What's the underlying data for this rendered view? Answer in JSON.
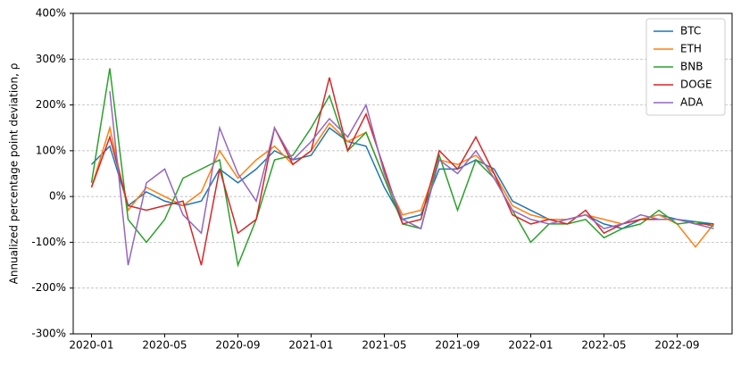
{
  "chart_data": {
    "type": "line",
    "ylabel": "Annualized percentage point deviation, ρ",
    "x": [
      "2020-01",
      "2020-02",
      "2020-03",
      "2020-04",
      "2020-05",
      "2020-06",
      "2020-07",
      "2020-08",
      "2020-09",
      "2020-10",
      "2020-11",
      "2020-12",
      "2021-01",
      "2021-02",
      "2021-03",
      "2021-04",
      "2021-05",
      "2021-06",
      "2021-07",
      "2021-08",
      "2021-09",
      "2021-10",
      "2021-11",
      "2021-12",
      "2022-01",
      "2022-02",
      "2022-03",
      "2022-04",
      "2022-05",
      "2022-06",
      "2022-07",
      "2022-08",
      "2022-09",
      "2022-10",
      "2022-11"
    ],
    "series": [
      {
        "name": "BTC",
        "color": "#1f77b4",
        "values": [
          70,
          110,
          -20,
          10,
          -10,
          -20,
          -10,
          60,
          30,
          60,
          100,
          80,
          90,
          150,
          120,
          110,
          20,
          -50,
          -40,
          60,
          60,
          80,
          60,
          -10,
          -30,
          -50,
          -50,
          -40,
          -60,
          -70,
          -50,
          -40,
          -50,
          -55,
          -60
        ]
      },
      {
        "name": "ETH",
        "color": "#ff7f0e",
        "values": [
          20,
          150,
          -30,
          20,
          0,
          -20,
          10,
          100,
          40,
          80,
          110,
          70,
          100,
          160,
          120,
          140,
          40,
          -40,
          -30,
          80,
          70,
          90,
          50,
          -20,
          -40,
          -50,
          -50,
          -40,
          -50,
          -60,
          -50,
          -40,
          -60,
          -110,
          -60
        ]
      },
      {
        "name": "BNB",
        "color": "#2ca02c",
        "values": [
          30,
          280,
          -50,
          -100,
          -50,
          40,
          60,
          80,
          -150,
          -50,
          80,
          90,
          150,
          220,
          100,
          140,
          40,
          -60,
          -70,
          90,
          -30,
          80,
          40,
          -30,
          -100,
          -60,
          -60,
          -50,
          -90,
          -70,
          -60,
          -30,
          -60,
          -55,
          -65
        ]
      },
      {
        "name": "DOGE",
        "color": "#d62728",
        "values": [
          20,
          130,
          -20,
          -30,
          -20,
          -10,
          -150,
          60,
          -80,
          -50,
          150,
          70,
          100,
          260,
          100,
          180,
          60,
          -60,
          -50,
          100,
          60,
          130,
          50,
          -40,
          -60,
          -50,
          -60,
          -30,
          -80,
          -60,
          -50,
          -50,
          -50,
          -60,
          -60
        ]
      },
      {
        "name": "ADA",
        "color": "#9467bd",
        "values": [
          null,
          230,
          -150,
          30,
          60,
          -40,
          -80,
          150,
          50,
          -10,
          150,
          80,
          120,
          170,
          130,
          200,
          50,
          -50,
          -70,
          80,
          50,
          100,
          40,
          -30,
          -50,
          -60,
          -50,
          -40,
          -70,
          -60,
          -40,
          -50,
          -50,
          -60,
          -70
        ]
      }
    ],
    "xlim": [
      "2019-12",
      "2022-12"
    ],
    "xticks": [
      "2020-01",
      "2020-05",
      "2020-09",
      "2021-01",
      "2021-05",
      "2021-09",
      "2022-01",
      "2022-05",
      "2022-09"
    ],
    "ylim": [
      -300,
      400
    ],
    "yticks": [
      {
        "value": -300,
        "label": "-300%"
      },
      {
        "value": -200,
        "label": "-200%"
      },
      {
        "value": -100,
        "label": "-100%"
      },
      {
        "value": 0,
        "label": "0%"
      },
      {
        "value": 100,
        "label": "100%"
      },
      {
        "value": 200,
        "label": "200%"
      },
      {
        "value": 300,
        "label": "300%"
      },
      {
        "value": 400,
        "label": "400%"
      }
    ],
    "grid": true,
    "legend": "upper right"
  }
}
